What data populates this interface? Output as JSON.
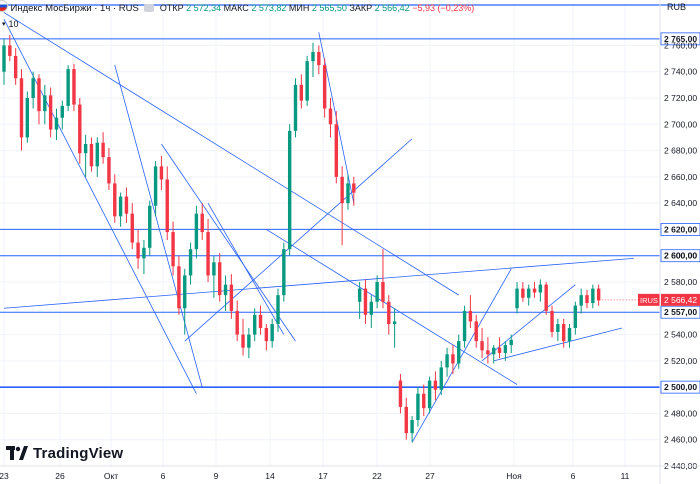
{
  "header": {
    "symbol": "Индекс МосБиржи · 1ч · RUS",
    "open_label": "ОТКР",
    "open_value": "2 572,34",
    "high_label": "МАКС",
    "high_value": "2 573,82",
    "low_label": "МИН",
    "low_value": "2 565,50",
    "close_label": "ЗАКР",
    "close_value": "2 566,42",
    "change": "−5,93 (−0,23%)",
    "volume_label": "10"
  },
  "currency": "RUB",
  "branding": {
    "logo_text": "TradingView"
  },
  "colors": {
    "up": "#089981",
    "down": "#f23645",
    "trendline": "#2962ff",
    "level": "#2962ff",
    "grid": "#f0f3fa",
    "text": "#131722"
  },
  "chart_data": {
    "type": "candlestick",
    "title": "Индекс МосБиржи · 1ч · RUS",
    "x_tick_labels": [
      "23",
      "26",
      "Окт",
      "6",
      "9",
      "14",
      "17",
      "22",
      "27",
      "Ноя",
      "6",
      "11"
    ],
    "y_ticks": [
      "2 760,00",
      "2 740,00",
      "2 720,00",
      "2 700,00",
      "2 680,00",
      "2 660,00",
      "2 640,00",
      "2 600,00",
      "2 580,00",
      "2 540,00",
      "2 520,00",
      "2 480,00",
      "2 460,00",
      "2 440,00"
    ],
    "ylim": [
      2440,
      2790
    ],
    "price_levels": [
      {
        "value": 2765.0,
        "label": "2 765,00"
      },
      {
        "value": 2620.0,
        "label": "2 620,00"
      },
      {
        "value": 2600.0,
        "label": "2 600,00"
      },
      {
        "value": 2557.0,
        "label": "2 557,00"
      },
      {
        "value": 2500.0,
        "label": "2 500,00"
      }
    ],
    "last_price": {
      "tag": "IRUS",
      "value": 2566.42,
      "label": "2 566,42"
    },
    "trendlines": [
      {
        "from": {
          "bar": 0,
          "price": 2780
        },
        "to": {
          "bar": 33,
          "price": 2495
        }
      },
      {
        "from": {
          "bar": 0,
          "price": 2785
        },
        "to": {
          "bar": 78,
          "price": 2570
        }
      },
      {
        "from": {
          "bar": 19,
          "price": 2745
        },
        "to": {
          "bar": 34,
          "price": 2500
        }
      },
      {
        "from": {
          "bar": 27,
          "price": 2685
        },
        "to": {
          "bar": 50,
          "price": 2535
        }
      },
      {
        "from": {
          "bar": 35,
          "price": 2640
        },
        "to": {
          "bar": 48,
          "price": 2540
        }
      },
      {
        "from": {
          "bar": 54,
          "price": 2770
        },
        "to": {
          "bar": 60,
          "price": 2640
        }
      },
      {
        "from": {
          "bar": 31,
          "price": 2535
        },
        "to": {
          "bar": 70,
          "price": 2689
        }
      },
      {
        "from": {
          "bar": 0,
          "price": 2560
        },
        "to": {
          "bar": 108,
          "price": 2598
        }
      },
      {
        "from": {
          "bar": 45,
          "price": 2620
        },
        "to": {
          "bar": 88,
          "price": 2502
        }
      },
      {
        "from": {
          "bar": 70,
          "price": 2458
        },
        "to": {
          "bar": 87,
          "price": 2590
        }
      },
      {
        "from": {
          "bar": 82,
          "price": 2520
        },
        "to": {
          "bar": 98,
          "price": 2578
        }
      },
      {
        "from": {
          "bar": 84,
          "price": 2520
        },
        "to": {
          "bar": 106,
          "price": 2545
        }
      }
    ],
    "candles": [
      {
        "o": 2740,
        "h": 2765,
        "l": 2730,
        "c": 2760
      },
      {
        "o": 2760,
        "h": 2768,
        "l": 2748,
        "c": 2752
      },
      {
        "o": 2752,
        "h": 2758,
        "l": 2730,
        "c": 2735
      },
      {
        "o": 2735,
        "h": 2742,
        "l": 2680,
        "c": 2690
      },
      {
        "o": 2690,
        "h": 2725,
        "l": 2686,
        "c": 2720
      },
      {
        "o": 2720,
        "h": 2740,
        "l": 2712,
        "c": 2735
      },
      {
        "o": 2735,
        "h": 2738,
        "l": 2700,
        "c": 2710
      },
      {
        "o": 2710,
        "h": 2730,
        "l": 2700,
        "c": 2722
      },
      {
        "o": 2722,
        "h": 2728,
        "l": 2690,
        "c": 2696
      },
      {
        "o": 2696,
        "h": 2712,
        "l": 2688,
        "c": 2705
      },
      {
        "o": 2705,
        "h": 2718,
        "l": 2696,
        "c": 2714
      },
      {
        "o": 2714,
        "h": 2745,
        "l": 2710,
        "c": 2742
      },
      {
        "o": 2742,
        "h": 2746,
        "l": 2710,
        "c": 2715
      },
      {
        "o": 2715,
        "h": 2720,
        "l": 2670,
        "c": 2678
      },
      {
        "o": 2678,
        "h": 2692,
        "l": 2660,
        "c": 2685
      },
      {
        "o": 2685,
        "h": 2690,
        "l": 2664,
        "c": 2668
      },
      {
        "o": 2668,
        "h": 2690,
        "l": 2660,
        "c": 2686
      },
      {
        "o": 2686,
        "h": 2694,
        "l": 2670,
        "c": 2675
      },
      {
        "o": 2675,
        "h": 2682,
        "l": 2650,
        "c": 2655
      },
      {
        "o": 2655,
        "h": 2662,
        "l": 2625,
        "c": 2630
      },
      {
        "o": 2630,
        "h": 2648,
        "l": 2622,
        "c": 2645
      },
      {
        "o": 2645,
        "h": 2652,
        "l": 2625,
        "c": 2632
      },
      {
        "o": 2632,
        "h": 2640,
        "l": 2605,
        "c": 2610
      },
      {
        "o": 2610,
        "h": 2620,
        "l": 2590,
        "c": 2598
      },
      {
        "o": 2598,
        "h": 2612,
        "l": 2586,
        "c": 2606
      },
      {
        "o": 2606,
        "h": 2642,
        "l": 2600,
        "c": 2638
      },
      {
        "o": 2638,
        "h": 2672,
        "l": 2630,
        "c": 2668
      },
      {
        "o": 2668,
        "h": 2676,
        "l": 2650,
        "c": 2658
      },
      {
        "o": 2658,
        "h": 2668,
        "l": 2612,
        "c": 2618
      },
      {
        "o": 2618,
        "h": 2626,
        "l": 2585,
        "c": 2592
      },
      {
        "o": 2592,
        "h": 2600,
        "l": 2555,
        "c": 2560
      },
      {
        "o": 2560,
        "h": 2590,
        "l": 2540,
        "c": 2585
      },
      {
        "o": 2585,
        "h": 2610,
        "l": 2578,
        "c": 2605
      },
      {
        "o": 2605,
        "h": 2638,
        "l": 2598,
        "c": 2632
      },
      {
        "o": 2632,
        "h": 2640,
        "l": 2612,
        "c": 2618
      },
      {
        "o": 2618,
        "h": 2628,
        "l": 2580,
        "c": 2585
      },
      {
        "o": 2585,
        "h": 2600,
        "l": 2568,
        "c": 2595
      },
      {
        "o": 2595,
        "h": 2602,
        "l": 2565,
        "c": 2570
      },
      {
        "o": 2570,
        "h": 2585,
        "l": 2558,
        "c": 2578
      },
      {
        "o": 2578,
        "h": 2586,
        "l": 2552,
        "c": 2558
      },
      {
        "o": 2558,
        "h": 2566,
        "l": 2535,
        "c": 2540
      },
      {
        "o": 2540,
        "h": 2552,
        "l": 2524,
        "c": 2530
      },
      {
        "o": 2530,
        "h": 2545,
        "l": 2522,
        "c": 2540
      },
      {
        "o": 2540,
        "h": 2560,
        "l": 2535,
        "c": 2555
      },
      {
        "o": 2555,
        "h": 2562,
        "l": 2540,
        "c": 2545
      },
      {
        "o": 2545,
        "h": 2548,
        "l": 2528,
        "c": 2535
      },
      {
        "o": 2535,
        "h": 2552,
        "l": 2530,
        "c": 2548
      },
      {
        "o": 2548,
        "h": 2575,
        "l": 2542,
        "c": 2570
      },
      {
        "o": 2570,
        "h": 2610,
        "l": 2565,
        "c": 2605
      },
      {
        "o": 2605,
        "h": 2700,
        "l": 2600,
        "c": 2695
      },
      {
        "o": 2695,
        "h": 2735,
        "l": 2690,
        "c": 2730
      },
      {
        "o": 2730,
        "h": 2738,
        "l": 2712,
        "c": 2718
      },
      {
        "o": 2718,
        "h": 2752,
        "l": 2714,
        "c": 2748
      },
      {
        "o": 2748,
        "h": 2762,
        "l": 2736,
        "c": 2755
      },
      {
        "o": 2755,
        "h": 2760,
        "l": 2738,
        "c": 2745
      },
      {
        "o": 2745,
        "h": 2750,
        "l": 2705,
        "c": 2712
      },
      {
        "o": 2712,
        "h": 2720,
        "l": 2690,
        "c": 2700
      },
      {
        "o": 2700,
        "h": 2710,
        "l": 2655,
        "c": 2660
      },
      {
        "o": 2660,
        "h": 2668,
        "l": 2608,
        "c": 2640
      },
      {
        "o": 2640,
        "h": 2662,
        "l": 2635,
        "c": 2655
      },
      {
        "o": 2655,
        "h": 2660,
        "l": 2638,
        "c": 2648
      },
      {
        "o": 2565,
        "h": 2580,
        "l": 2552,
        "c": 2575
      },
      {
        "o": 2575,
        "h": 2582,
        "l": 2548,
        "c": 2555
      },
      {
        "o": 2555,
        "h": 2570,
        "l": 2545,
        "c": 2565
      },
      {
        "o": 2565,
        "h": 2585,
        "l": 2560,
        "c": 2580
      },
      {
        "o": 2580,
        "h": 2605,
        "l": 2560,
        "c": 2565
      },
      {
        "o": 2565,
        "h": 2570,
        "l": 2540,
        "c": 2548
      },
      {
        "o": 2548,
        "h": 2560,
        "l": 2530,
        "c": 2550
      },
      {
        "o": 2505,
        "h": 2510,
        "l": 2480,
        "c": 2485
      },
      {
        "o": 2485,
        "h": 2492,
        "l": 2460,
        "c": 2465
      },
      {
        "o": 2465,
        "h": 2478,
        "l": 2458,
        "c": 2475
      },
      {
        "o": 2475,
        "h": 2500,
        "l": 2470,
        "c": 2495
      },
      {
        "o": 2495,
        "h": 2502,
        "l": 2478,
        "c": 2484
      },
      {
        "o": 2484,
        "h": 2508,
        "l": 2480,
        "c": 2505
      },
      {
        "o": 2505,
        "h": 2512,
        "l": 2490,
        "c": 2498
      },
      {
        "o": 2498,
        "h": 2520,
        "l": 2494,
        "c": 2515
      },
      {
        "o": 2515,
        "h": 2530,
        "l": 2508,
        "c": 2525
      },
      {
        "o": 2525,
        "h": 2532,
        "l": 2510,
        "c": 2518
      },
      {
        "o": 2518,
        "h": 2540,
        "l": 2514,
        "c": 2535
      },
      {
        "o": 2535,
        "h": 2562,
        "l": 2530,
        "c": 2558
      },
      {
        "o": 2558,
        "h": 2570,
        "l": 2545,
        "c": 2550
      },
      {
        "o": 2550,
        "h": 2555,
        "l": 2530,
        "c": 2535
      },
      {
        "o": 2535,
        "h": 2545,
        "l": 2522,
        "c": 2528
      },
      {
        "o": 2528,
        "h": 2538,
        "l": 2518,
        "c": 2525
      },
      {
        "o": 2525,
        "h": 2532,
        "l": 2518,
        "c": 2530
      },
      {
        "o": 2530,
        "h": 2538,
        "l": 2522,
        "c": 2526
      },
      {
        "o": 2526,
        "h": 2535,
        "l": 2520,
        "c": 2532
      },
      {
        "o": 2532,
        "h": 2540,
        "l": 2526,
        "c": 2536
      },
      {
        "o": 2560,
        "h": 2580,
        "l": 2556,
        "c": 2575
      },
      {
        "o": 2575,
        "h": 2580,
        "l": 2565,
        "c": 2568
      },
      {
        "o": 2568,
        "h": 2578,
        "l": 2562,
        "c": 2575
      },
      {
        "o": 2575,
        "h": 2580,
        "l": 2568,
        "c": 2572
      },
      {
        "o": 2572,
        "h": 2582,
        "l": 2565,
        "c": 2578
      },
      {
        "o": 2578,
        "h": 2580,
        "l": 2555,
        "c": 2558
      },
      {
        "o": 2558,
        "h": 2562,
        "l": 2538,
        "c": 2542
      },
      {
        "o": 2542,
        "h": 2552,
        "l": 2535,
        "c": 2548
      },
      {
        "o": 2548,
        "h": 2552,
        "l": 2530,
        "c": 2535
      },
      {
        "o": 2535,
        "h": 2548,
        "l": 2530,
        "c": 2545
      },
      {
        "o": 2545,
        "h": 2565,
        "l": 2540,
        "c": 2562
      },
      {
        "o": 2562,
        "h": 2575,
        "l": 2556,
        "c": 2570
      },
      {
        "o": 2570,
        "h": 2574,
        "l": 2560,
        "c": 2564
      },
      {
        "o": 2564,
        "h": 2578,
        "l": 2560,
        "c": 2575
      },
      {
        "o": 2575,
        "h": 2578,
        "l": 2562,
        "c": 2566
      }
    ]
  }
}
